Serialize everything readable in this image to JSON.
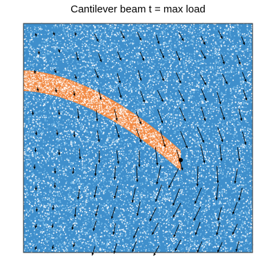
{
  "chart_data": {
    "type": "scatter",
    "title": "Cantilever beam t = max load",
    "xlabel": "",
    "ylabel": "",
    "grid": false,
    "axes_ticks": false,
    "series": [
      {
        "role": "background-particles",
        "color": "#3f8fcc",
        "alt_color": "#7fbfea",
        "count": 10000
      },
      {
        "role": "beam-particles",
        "color": "#f28a43",
        "alt_color": "#f6c5a4",
        "count": 1800
      },
      {
        "role": "velocity-field",
        "glyph": "arrow",
        "color": "#000000",
        "count": 130
      }
    ],
    "beam": {
      "fixed_end": "left",
      "deflected_tip": "bottom-right"
    },
    "tip_marker": {
      "color": "#000000"
    }
  }
}
